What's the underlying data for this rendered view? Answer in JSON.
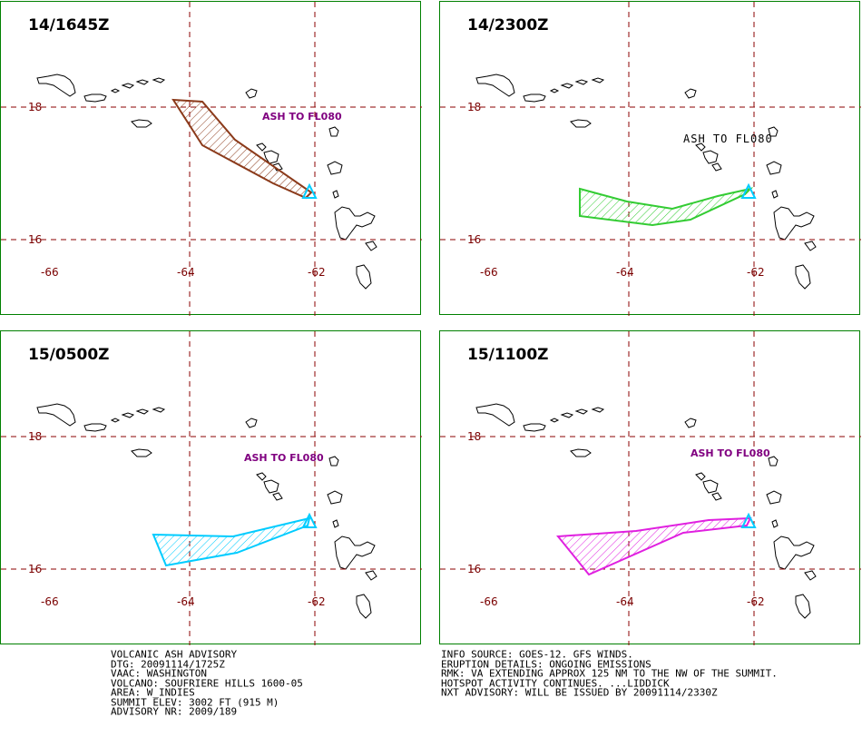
{
  "panels": [
    {
      "title": "14/1645Z",
      "ash_label": "ASH TO FL080",
      "ash_color": "#8B3A1A",
      "ash_label_style": "purple"
    },
    {
      "title": "14/2300Z",
      "ash_label": "ASH TO FL080",
      "ash_color": "#33CC33",
      "ash_label_style": "black"
    },
    {
      "title": "15/0500Z",
      "ash_label": "ASH TO FL080",
      "ash_color": "#00CCFF",
      "ash_label_style": "purple"
    },
    {
      "title": "15/1100Z",
      "ash_label": "ASH TO FL080",
      "ash_color": "#E020E0",
      "ash_label_style": "purple"
    }
  ],
  "axes": {
    "lat_labels": [
      "18",
      "16"
    ],
    "lon_labels": [
      "-66",
      "-64",
      "-62"
    ]
  },
  "advisory_left": [
    "VOLCANIC ASH ADVISORY",
    "DTG: 20091114/1725Z",
    "VAAC: WASHINGTON",
    "VOLCANO: SOUFRIERE HILLS 1600-05",
    "AREA: W_INDIES",
    "SUMMIT ELEV: 3002 FT (915 M)",
    "ADVISORY NR: 2009/189"
  ],
  "advisory_right": [
    "INFO SOURCE: GOES-12. GFS WINDS.",
    "ERUPTION DETAILS: ONGOING EMISSIONS",
    "RMK: VA EXTENDING APPROX 125 NM TO THE NW OF THE SUMMIT.",
    "HOTSPOT ACTIVITY CONTINUES. ...LIDDICK",
    "NXT ADVISORY: WILL BE ISSUED BY 20091114/2330Z"
  ],
  "colors": {
    "panel_border": "#008000",
    "grid": "#8B0000",
    "volcano_marker": "#00CCFF",
    "ash_text": "#800080"
  }
}
